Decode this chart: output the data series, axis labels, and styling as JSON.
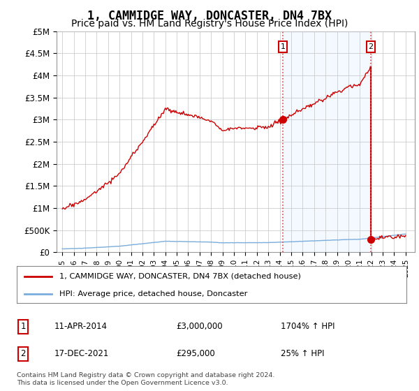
{
  "title": "1, CAMMIDGE WAY, DONCASTER, DN4 7BX",
  "subtitle": "Price paid vs. HM Land Registry's House Price Index (HPI)",
  "title_fontsize": 12,
  "subtitle_fontsize": 10,
  "ylabel_ticks": [
    "£0",
    "£500K",
    "£1M",
    "£1.5M",
    "£2M",
    "£2.5M",
    "£3M",
    "£3.5M",
    "£4M",
    "£4.5M",
    "£5M"
  ],
  "ytick_values": [
    0,
    500000,
    1000000,
    1500000,
    2000000,
    2500000,
    3000000,
    3500000,
    4000000,
    4500000,
    5000000
  ],
  "ylim": [
    0,
    5000000
  ],
  "xlim_start": 1994.5,
  "xlim_end": 2025.8,
  "xticks": [
    1995,
    1996,
    1997,
    1998,
    1999,
    2000,
    2001,
    2002,
    2003,
    2004,
    2005,
    2006,
    2007,
    2008,
    2009,
    2010,
    2011,
    2012,
    2013,
    2014,
    2015,
    2016,
    2017,
    2018,
    2019,
    2020,
    2021,
    2022,
    2023,
    2024,
    2025
  ],
  "hpi_color": "#7aaddc",
  "price_color": "#cc0000",
  "vline_color": "#dd4444",
  "shade_color": "#ddeeff",
  "sale1_year": 2014.28,
  "sale1_price": 3000000,
  "sale1_label": "1",
  "sale2_year": 2021.96,
  "sale2_price": 295000,
  "sale2_label": "2",
  "legend_line1": "1, CAMMIDGE WAY, DONCASTER, DN4 7BX (detached house)",
  "legend_line2": "HPI: Average price, detached house, Doncaster",
  "annotation1_date": "11-APR-2014",
  "annotation1_price": "£3,000,000",
  "annotation1_hpi": "1704% ↑ HPI",
  "annotation2_date": "17-DEC-2021",
  "annotation2_price": "£295,000",
  "annotation2_hpi": "25% ↑ HPI",
  "footnote": "Contains HM Land Registry data © Crown copyright and database right 2024.\nThis data is licensed under the Open Government Licence v3.0.",
  "bg_color": "#ffffff",
  "plot_bg_color": "#ffffff",
  "grid_color": "#cccccc"
}
